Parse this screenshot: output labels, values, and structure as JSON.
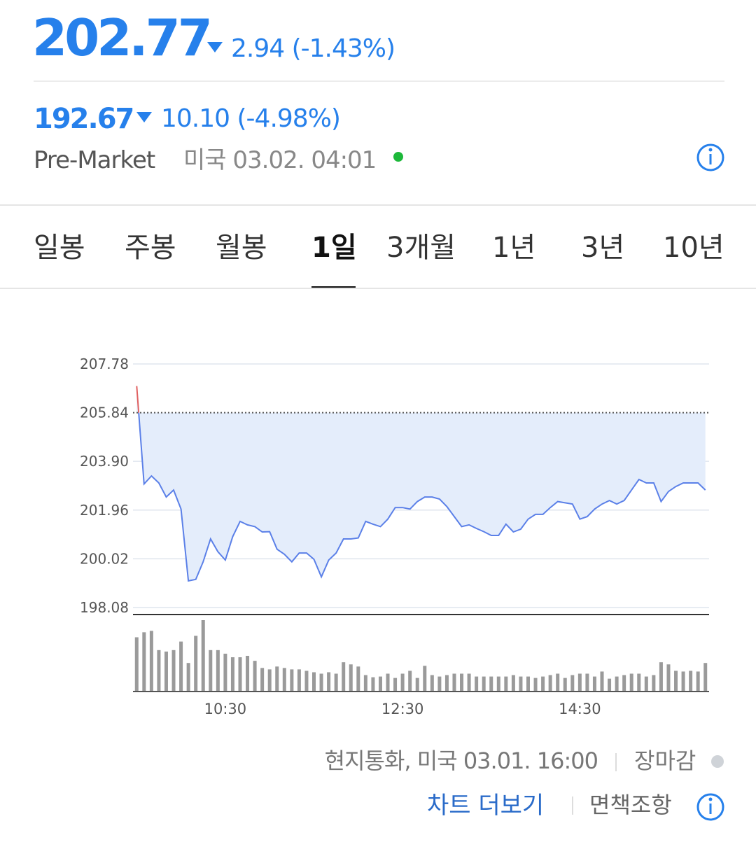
{
  "header": {
    "price": "202.77",
    "change": "2.94 (-1.43%)",
    "pre_price": "192.67",
    "pre_change": "10.10 (-4.98%)",
    "pre_label": "Pre-Market",
    "pre_time": "미국 03.02. 04:01"
  },
  "tabs": {
    "items": [
      "일봉",
      "주봉",
      "월봉",
      "1일",
      "3개월",
      "1년",
      "3년",
      "10년"
    ],
    "selected": 3
  },
  "chart_data": {
    "type": "line",
    "categories": [
      null,
      null,
      null,
      null,
      null,
      null,
      null,
      null,
      null,
      null,
      null,
      null,
      "10:30",
      null,
      null,
      null,
      null,
      null,
      null,
      null,
      null,
      null,
      null,
      null,
      null,
      null,
      null,
      null,
      null,
      null,
      null,
      null,
      null,
      null,
      null,
      null,
      "12:30",
      null,
      null,
      null,
      null,
      null,
      null,
      null,
      null,
      null,
      null,
      null,
      null,
      null,
      null,
      null,
      null,
      null,
      null,
      null,
      null,
      null,
      null,
      null,
      "14:30",
      null,
      null,
      null,
      null,
      null,
      null,
      null,
      null,
      null,
      null,
      null,
      null,
      null,
      null,
      null,
      null,
      null
    ],
    "values": [
      206.9,
      203.0,
      203.32,
      203.04,
      202.48,
      202.76,
      202.0,
      199.14,
      199.2,
      199.9,
      200.81,
      200.3,
      199.97,
      200.9,
      201.51,
      201.37,
      201.3,
      201.09,
      201.1,
      200.4,
      200.2,
      199.9,
      200.25,
      200.25,
      200.0,
      199.3,
      199.97,
      200.25,
      200.81,
      200.81,
      200.85,
      201.51,
      201.4,
      201.3,
      201.6,
      202.06,
      202.06,
      202.0,
      202.3,
      202.48,
      202.48,
      202.4,
      202.1,
      201.7,
      201.3,
      201.37,
      201.23,
      201.1,
      200.95,
      200.95,
      201.4,
      201.09,
      201.2,
      201.6,
      201.79,
      201.79,
      202.06,
      202.3,
      202.25,
      202.2,
      201.6,
      201.7,
      202.0,
      202.2,
      202.34,
      202.2,
      202.34,
      202.76,
      203.18,
      203.04,
      203.04,
      202.3,
      202.7,
      202.9,
      203.04,
      203.04,
      203.04,
      202.76
    ],
    "volume": [
      76,
      83,
      85,
      58,
      56,
      58,
      70,
      40,
      78,
      100,
      58,
      58,
      53,
      48,
      48,
      50,
      43,
      33,
      31,
      35,
      33,
      31,
      31,
      29,
      27,
      25,
      27,
      25,
      41,
      38,
      35,
      23,
      20,
      21,
      25,
      19,
      25,
      29,
      19,
      36,
      23,
      21,
      23,
      25,
      25,
      25,
      21,
      21,
      21,
      21,
      21,
      23,
      21,
      21,
      19,
      21,
      23,
      25,
      19,
      23,
      25,
      25,
      21,
      28,
      18,
      21,
      23,
      25,
      25,
      21,
      23,
      41,
      38,
      29,
      28,
      29,
      28,
      40
    ],
    "color": "#5b80e8",
    "up_color": "#e06060",
    "fill_color": "#e4edfb",
    "volume_color": "#9a9a9a",
    "baseline": 205.84,
    "ylim": [
      197.8,
      207.78
    ],
    "yticks": [
      198.08,
      200.02,
      201.96,
      {
        "value": 203.9,
        "label": "203.90"
      },
      205.84,
      207.78
    ],
    "grid": true
  },
  "footer": {
    "currency": "현지통화, 미국 03.01. 16:00",
    "status": "장마감",
    "more": "차트 더보기",
    "disclaimer": "면책조항"
  }
}
